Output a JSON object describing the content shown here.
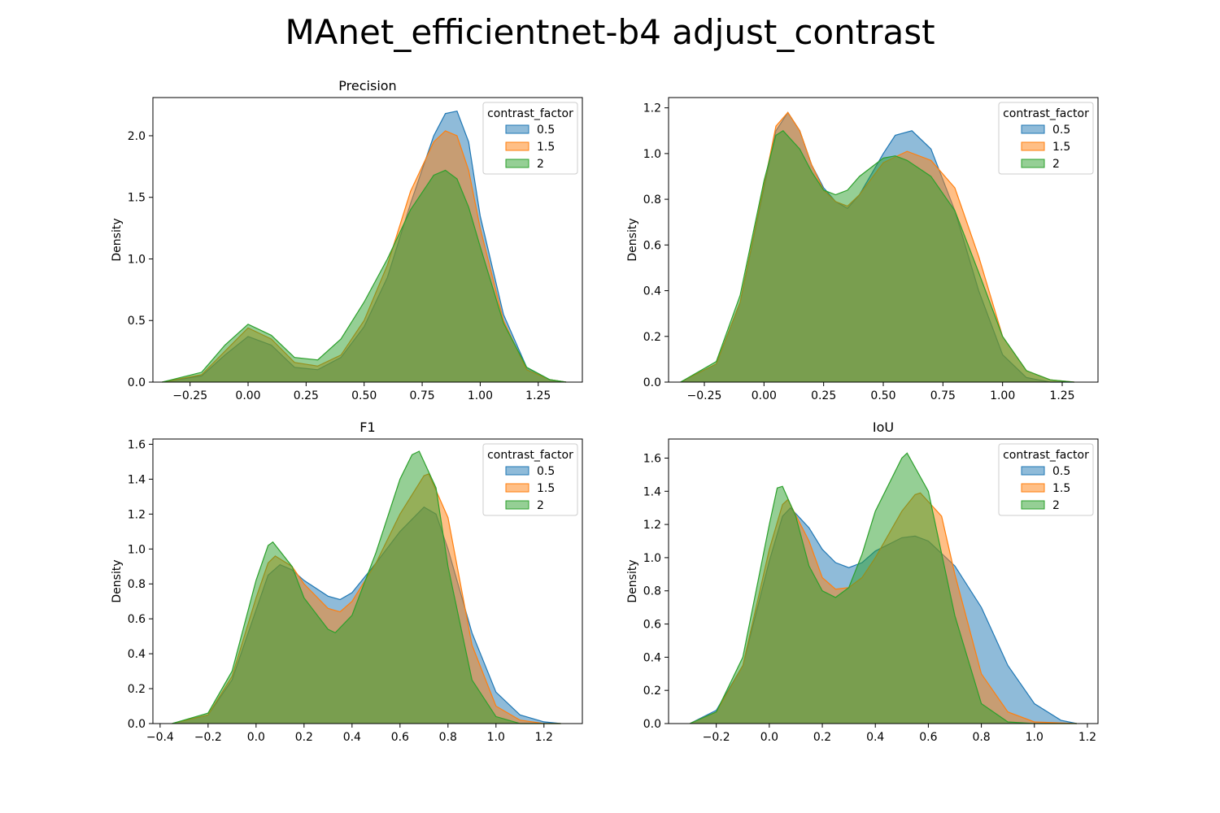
{
  "figure": {
    "title": "MAnet_efficientnet-b4 adjust_contrast"
  },
  "colors": {
    "0.5": "#1f77b4",
    "1.5": "#ff7f0e",
    "2": "#2ca02c"
  },
  "chart_data": [
    {
      "type": "area",
      "title": "Precision",
      "xlabel": "",
      "ylabel": "Density",
      "xlim": [
        -0.41,
        1.44
      ],
      "ylim": [
        0,
        2.31
      ],
      "xticks": [
        -0.25,
        0.0,
        0.25,
        0.5,
        0.75,
        1.0,
        1.25
      ],
      "xtick_labels": [
        "−0.25",
        "0.00",
        "0.25",
        "0.50",
        "0.75",
        "1.00",
        "1.25"
      ],
      "yticks": [
        0.0,
        0.5,
        1.0,
        1.5,
        2.0
      ],
      "ytick_labels": [
        "0.0",
        "0.5",
        "1.0",
        "1.5",
        "2.0"
      ],
      "legend": {
        "title": "contrast_factor",
        "position": "top-right",
        "entries": [
          "0.5",
          "1.5",
          "2"
        ]
      },
      "series": [
        {
          "name": "0.5",
          "x": [
            -0.37,
            -0.2,
            -0.1,
            0.0,
            0.1,
            0.2,
            0.3,
            0.4,
            0.5,
            0.6,
            0.7,
            0.8,
            0.85,
            0.9,
            0.95,
            1.0,
            1.1,
            1.2,
            1.3,
            1.37
          ],
          "y": [
            0.0,
            0.05,
            0.22,
            0.37,
            0.3,
            0.12,
            0.1,
            0.2,
            0.45,
            0.85,
            1.45,
            2.0,
            2.18,
            2.2,
            1.95,
            1.35,
            0.55,
            0.12,
            0.02,
            0.0
          ]
        },
        {
          "name": "1.5",
          "x": [
            -0.37,
            -0.2,
            -0.1,
            0.0,
            0.1,
            0.2,
            0.3,
            0.4,
            0.5,
            0.6,
            0.7,
            0.8,
            0.85,
            0.9,
            0.95,
            1.0,
            1.1,
            1.2,
            1.3,
            1.37
          ],
          "y": [
            0.0,
            0.06,
            0.25,
            0.44,
            0.35,
            0.16,
            0.13,
            0.22,
            0.5,
            0.95,
            1.55,
            1.95,
            2.04,
            2.0,
            1.72,
            1.25,
            0.5,
            0.1,
            0.02,
            0.0
          ]
        },
        {
          "name": "2",
          "x": [
            -0.37,
            -0.2,
            -0.1,
            0.0,
            0.1,
            0.2,
            0.3,
            0.4,
            0.5,
            0.6,
            0.7,
            0.8,
            0.85,
            0.9,
            0.95,
            1.0,
            1.1,
            1.2,
            1.3,
            1.37
          ],
          "y": [
            0.0,
            0.08,
            0.3,
            0.47,
            0.38,
            0.2,
            0.18,
            0.35,
            0.65,
            1.0,
            1.4,
            1.68,
            1.72,
            1.65,
            1.42,
            1.1,
            0.48,
            0.12,
            0.02,
            0.0
          ]
        }
      ]
    },
    {
      "type": "area",
      "title": "",
      "xlabel": "",
      "ylabel": "Density",
      "xlim": [
        -0.4,
        1.4
      ],
      "ylim": [
        0,
        1.245
      ],
      "xticks": [
        -0.25,
        0.0,
        0.25,
        0.5,
        0.75,
        1.0,
        1.25
      ],
      "xtick_labels": [
        "−0.25",
        "0.00",
        "0.25",
        "0.50",
        "0.75",
        "1.00",
        "1.25"
      ],
      "yticks": [
        0.0,
        0.2,
        0.4,
        0.6,
        0.8,
        1.0,
        1.2
      ],
      "ytick_labels": [
        "0.0",
        "0.2",
        "0.4",
        "0.6",
        "0.8",
        "1.0",
        "1.2"
      ],
      "legend": {
        "title": "contrast_factor",
        "position": "top-right",
        "entries": [
          "0.5",
          "1.5",
          "2"
        ]
      },
      "series": [
        {
          "name": "0.5",
          "x": [
            -0.35,
            -0.2,
            -0.1,
            0.0,
            0.05,
            0.1,
            0.15,
            0.2,
            0.25,
            0.3,
            0.35,
            0.4,
            0.5,
            0.55,
            0.62,
            0.7,
            0.8,
            0.9,
            1.0,
            1.1,
            1.2,
            1.3
          ],
          "y": [
            0.0,
            0.08,
            0.35,
            0.85,
            1.1,
            1.18,
            1.1,
            0.95,
            0.85,
            0.79,
            0.76,
            0.82,
            1.0,
            1.08,
            1.1,
            1.02,
            0.75,
            0.4,
            0.12,
            0.02,
            0.0,
            0.0
          ]
        },
        {
          "name": "1.5",
          "x": [
            -0.35,
            -0.2,
            -0.1,
            0.0,
            0.05,
            0.1,
            0.15,
            0.2,
            0.25,
            0.3,
            0.35,
            0.4,
            0.5,
            0.6,
            0.7,
            0.8,
            0.9,
            1.0,
            1.1,
            1.2,
            1.3
          ],
          "y": [
            0.0,
            0.08,
            0.35,
            0.86,
            1.12,
            1.18,
            1.1,
            0.95,
            0.84,
            0.79,
            0.77,
            0.82,
            0.96,
            1.01,
            0.97,
            0.85,
            0.55,
            0.2,
            0.05,
            0.01,
            0.0
          ]
        },
        {
          "name": "2",
          "x": [
            -0.35,
            -0.2,
            -0.1,
            0.0,
            0.05,
            0.08,
            0.15,
            0.2,
            0.25,
            0.3,
            0.35,
            0.4,
            0.5,
            0.55,
            0.6,
            0.7,
            0.8,
            0.9,
            1.0,
            1.1,
            1.2,
            1.3
          ],
          "y": [
            0.0,
            0.09,
            0.38,
            0.88,
            1.08,
            1.1,
            1.02,
            0.92,
            0.84,
            0.82,
            0.84,
            0.9,
            0.98,
            0.99,
            0.97,
            0.9,
            0.75,
            0.48,
            0.2,
            0.05,
            0.01,
            0.0
          ]
        }
      ]
    },
    {
      "type": "area",
      "title": "F1",
      "xlabel": "",
      "ylabel": "Density",
      "xlim": [
        -0.43,
        1.36
      ],
      "ylim": [
        0,
        1.63
      ],
      "xticks": [
        -0.4,
        -0.2,
        0.0,
        0.2,
        0.4,
        0.6,
        0.8,
        1.0,
        1.2
      ],
      "xtick_labels": [
        "−0.4",
        "−0.2",
        "0.0",
        "0.2",
        "0.4",
        "0.6",
        "0.8",
        "1.0",
        "1.2"
      ],
      "yticks": [
        0.0,
        0.2,
        0.4,
        0.6,
        0.8,
        1.0,
        1.2,
        1.4,
        1.6
      ],
      "ytick_labels": [
        "0.0",
        "0.2",
        "0.4",
        "0.6",
        "0.8",
        "1.0",
        "1.2",
        "1.4",
        "1.6"
      ],
      "legend": {
        "title": "contrast_factor",
        "position": "top-right",
        "entries": [
          "0.5",
          "1.5",
          "2"
        ]
      },
      "series": [
        {
          "name": "0.5",
          "x": [
            -0.35,
            -0.2,
            -0.1,
            0.0,
            0.05,
            0.1,
            0.15,
            0.2,
            0.3,
            0.35,
            0.4,
            0.5,
            0.6,
            0.7,
            0.75,
            0.8,
            0.9,
            1.0,
            1.1,
            1.2,
            1.27
          ],
          "y": [
            0.0,
            0.05,
            0.25,
            0.65,
            0.85,
            0.91,
            0.88,
            0.82,
            0.73,
            0.71,
            0.75,
            0.92,
            1.1,
            1.24,
            1.2,
            1.0,
            0.52,
            0.18,
            0.05,
            0.01,
            0.0
          ]
        },
        {
          "name": "1.5",
          "x": [
            -0.35,
            -0.2,
            -0.1,
            0.0,
            0.05,
            0.08,
            0.15,
            0.2,
            0.3,
            0.35,
            0.4,
            0.5,
            0.6,
            0.7,
            0.72,
            0.8,
            0.9,
            1.0,
            1.1,
            1.2,
            1.27
          ],
          "y": [
            0.0,
            0.05,
            0.27,
            0.72,
            0.92,
            0.96,
            0.9,
            0.8,
            0.66,
            0.64,
            0.7,
            0.92,
            1.2,
            1.42,
            1.43,
            1.18,
            0.45,
            0.1,
            0.02,
            0.0,
            0.0
          ]
        },
        {
          "name": "2",
          "x": [
            -0.35,
            -0.2,
            -0.1,
            0.0,
            0.05,
            0.07,
            0.15,
            0.2,
            0.3,
            0.33,
            0.4,
            0.5,
            0.6,
            0.65,
            0.68,
            0.75,
            0.8,
            0.9,
            1.0,
            1.1,
            1.27
          ],
          "y": [
            0.0,
            0.06,
            0.3,
            0.82,
            1.02,
            1.04,
            0.9,
            0.72,
            0.54,
            0.52,
            0.62,
            0.98,
            1.4,
            1.54,
            1.56,
            1.35,
            0.9,
            0.25,
            0.04,
            0.0,
            0.0
          ]
        }
      ]
    },
    {
      "type": "area",
      "title": "IoU",
      "xlabel": "",
      "ylabel": "Density",
      "xlim": [
        -0.38,
        1.24
      ],
      "ylim": [
        0,
        1.715
      ],
      "xticks": [
        -0.2,
        0.0,
        0.2,
        0.4,
        0.6,
        0.8,
        1.0,
        1.2
      ],
      "xtick_labels": [
        "−0.2",
        "0.0",
        "0.2",
        "0.4",
        "0.6",
        "0.8",
        "1.0",
        "1.2"
      ],
      "yticks": [
        0.0,
        0.2,
        0.4,
        0.6,
        0.8,
        1.0,
        1.2,
        1.4,
        1.6
      ],
      "ytick_labels": [
        "0.0",
        "0.2",
        "0.4",
        "0.6",
        "0.8",
        "1.0",
        "1.2",
        "1.4",
        "1.6"
      ],
      "legend": {
        "title": "contrast_factor",
        "position": "top-right",
        "entries": [
          "0.5",
          "1.5",
          "2"
        ]
      },
      "series": [
        {
          "name": "0.5",
          "x": [
            -0.3,
            -0.2,
            -0.1,
            0.0,
            0.05,
            0.08,
            0.15,
            0.2,
            0.25,
            0.3,
            0.35,
            0.4,
            0.5,
            0.55,
            0.6,
            0.7,
            0.8,
            0.9,
            1.0,
            1.1,
            1.16
          ],
          "y": [
            0.0,
            0.08,
            0.35,
            0.98,
            1.25,
            1.3,
            1.18,
            1.05,
            0.97,
            0.94,
            0.97,
            1.04,
            1.12,
            1.13,
            1.1,
            0.95,
            0.7,
            0.35,
            0.12,
            0.02,
            0.0
          ]
        },
        {
          "name": "1.5",
          "x": [
            -0.3,
            -0.2,
            -0.1,
            0.0,
            0.05,
            0.07,
            0.15,
            0.2,
            0.25,
            0.3,
            0.35,
            0.4,
            0.5,
            0.55,
            0.57,
            0.65,
            0.7,
            0.8,
            0.9,
            1.0,
            1.16
          ],
          "y": [
            0.0,
            0.07,
            0.35,
            1.05,
            1.32,
            1.35,
            1.1,
            0.88,
            0.81,
            0.82,
            0.88,
            1.0,
            1.28,
            1.38,
            1.39,
            1.25,
            0.9,
            0.3,
            0.07,
            0.01,
            0.0
          ]
        },
        {
          "name": "2",
          "x": [
            -0.3,
            -0.2,
            -0.1,
            0.0,
            0.03,
            0.05,
            0.1,
            0.15,
            0.2,
            0.25,
            0.3,
            0.35,
            0.4,
            0.5,
            0.52,
            0.6,
            0.7,
            0.8,
            0.9,
            1.0,
            1.16
          ],
          "y": [
            0.0,
            0.07,
            0.4,
            1.2,
            1.42,
            1.43,
            1.25,
            0.95,
            0.8,
            0.76,
            0.82,
            1.02,
            1.28,
            1.6,
            1.63,
            1.4,
            0.65,
            0.12,
            0.01,
            0.0,
            0.0
          ]
        }
      ]
    }
  ]
}
